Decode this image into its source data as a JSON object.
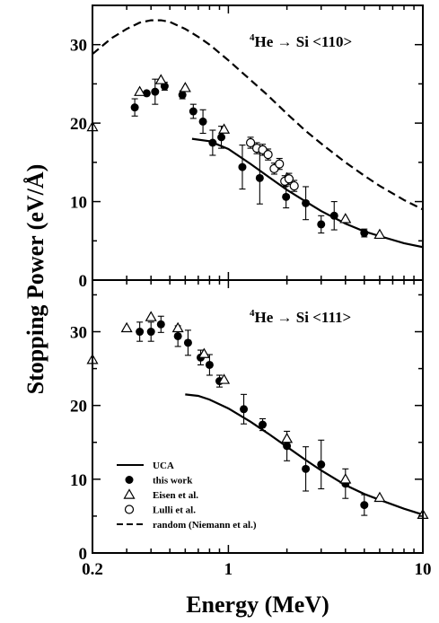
{
  "chart_data": {
    "type": "scatter",
    "xlabel": "Energy (MeV)",
    "ylabel": "Stopping Power (eV/Å)",
    "xscale": "log",
    "xlim": [
      0.2,
      10
    ],
    "xticks": [
      0.2,
      1,
      10
    ],
    "xticklabels": [
      "0.2",
      "1",
      "10"
    ],
    "legend_position": "bottom-left of lower panel",
    "legend": [
      {
        "label": "UCA",
        "marker": "solid-line"
      },
      {
        "label": "this work",
        "marker": "filled-circle"
      },
      {
        "label": "Eisen et al.",
        "marker": "open-triangle"
      },
      {
        "label": "Lulli et al.",
        "marker": "open-circle"
      },
      {
        "label": "random (Niemann et al.)",
        "marker": "dashed-line"
      }
    ],
    "panels": [
      {
        "title_prefix": "4",
        "title_main": "He  →  Si <110>",
        "ylim": [
          0,
          35
        ],
        "yticks": [
          0,
          10,
          20,
          30
        ],
        "yticklabels": [
          "0",
          "10",
          "20",
          "30"
        ],
        "series": [
          {
            "name": "this work",
            "marker": "filled-circle",
            "x": [
              0.33,
              0.38,
              0.42,
              0.47,
              0.58,
              0.66,
              0.74,
              0.83,
              0.92,
              1.18,
              1.45,
              1.98,
              2.5,
              3.0,
              3.5,
              5.0
            ],
            "y": [
              22,
              23.8,
              24,
              24.7,
              23.6,
              21.5,
              20.2,
              17.5,
              18.2,
              14.4,
              13.0,
              10.6,
              9.8,
              7.1,
              8.2,
              6.0
            ],
            "err": [
              1.1,
              0,
              1.6,
              0.5,
              0.5,
              0.9,
              1.5,
              1.6,
              1.4,
              2.8,
              3.3,
              1.4,
              2.1,
              1.1,
              1.8,
              0.5
            ]
          },
          {
            "name": "Eisen et al.",
            "marker": "open-triangle",
            "x": [
              0.2,
              0.35,
              0.45,
              0.6,
              0.95,
              2.0,
              4.0,
              6.0
            ],
            "y": [
              19.5,
              24.0,
              25.5,
              24.5,
              19.2,
              13.0,
              7.8,
              5.8
            ],
            "err": [
              0,
              0,
              0,
              0,
              0,
              0,
              0,
              0
            ]
          },
          {
            "name": "Lulli et al.",
            "marker": "open-circle",
            "x": [
              1.3,
              1.4,
              1.5,
              1.6,
              1.72,
              1.83,
              1.95,
              2.05,
              2.18
            ],
            "y": [
              17.5,
              16.8,
              16.6,
              16.0,
              14.2,
              14.8,
              12.6,
              12.9,
              12.0
            ],
            "err": [
              0.7,
              0.7,
              0.7,
              0.7,
              0.7,
              0.7,
              0.7,
              0.7,
              0.7
            ]
          },
          {
            "name": "UCA",
            "style": "solid-line",
            "x": [
              0.65,
              0.8,
              1.0,
              1.3,
              1.6,
              2.0,
              2.5,
              3.0,
              4.0,
              5.0,
              6.0,
              8.0,
              10.0
            ],
            "y": [
              18.0,
              17.7,
              16.7,
              14.8,
              13.2,
              11.5,
              10.0,
              8.8,
              7.2,
              6.2,
              5.6,
              4.7,
              4.2
            ]
          },
          {
            "name": "random (Niemann et al.)",
            "style": "dashed-line",
            "x": [
              0.2,
              0.25,
              0.3,
              0.35,
              0.4,
              0.45,
              0.5,
              0.6,
              0.7,
              0.8,
              1.0,
              1.3,
              1.6,
              2.0,
              2.5,
              3.0,
              4.0,
              5.0,
              6.0,
              8.0,
              10.0
            ],
            "y": [
              28.8,
              30.8,
              32.0,
              32.8,
              33.1,
              33.1,
              32.9,
              32.0,
              31.0,
              30.0,
              28.0,
              25.5,
              23.5,
              21.2,
              19.0,
              17.4,
              15.0,
              13.3,
              12.0,
              10.2,
              9.0
            ]
          }
        ]
      },
      {
        "title_prefix": "4",
        "title_main": "He  →  Si <111>",
        "ylim": [
          0,
          37
        ],
        "yticks": [
          0,
          10,
          20,
          30
        ],
        "yticklabels": [
          "0",
          "10",
          "20",
          "30"
        ],
        "series": [
          {
            "name": "this work",
            "marker": "filled-circle",
            "x": [
              0.35,
              0.4,
              0.45,
              0.55,
              0.62,
              0.72,
              0.8,
              0.9,
              1.2,
              1.5,
              2.0,
              2.5,
              3.0,
              4.0,
              5.0
            ],
            "y": [
              30.0,
              30.0,
              31.0,
              29.4,
              28.5,
              26.5,
              25.5,
              23.3,
              19.5,
              17.4,
              14.5,
              11.4,
              12.0,
              9.4,
              6.5
            ],
            "err": [
              1.3,
              1.3,
              1.1,
              1.4,
              1.7,
              1.0,
              1.4,
              0.8,
              2.0,
              0.8,
              2.0,
              3.0,
              3.3,
              2.0,
              1.4
            ]
          },
          {
            "name": "Eisen et al.",
            "marker": "open-triangle",
            "x": [
              0.2,
              0.3,
              0.4,
              0.55,
              0.75,
              0.95,
              2.0,
              4.0,
              6.0,
              10.0
            ],
            "y": [
              26.2,
              30.5,
              32.0,
              30.5,
              27.0,
              23.5,
              15.5,
              10.0,
              7.5,
              5.2
            ],
            "err": [
              0,
              0,
              0,
              0,
              0,
              0,
              0,
              0,
              0,
              0
            ]
          },
          {
            "name": "UCA",
            "style": "solid-line",
            "x": [
              0.6,
              0.7,
              0.8,
              1.0,
              1.3,
              1.6,
              2.0,
              2.5,
              3.0,
              4.0,
              5.0,
              6.0,
              8.0,
              10.0
            ],
            "y": [
              21.5,
              21.3,
              20.8,
              19.6,
              17.8,
              16.2,
              14.4,
              12.6,
              11.2,
              9.2,
              8.0,
              7.2,
              6.0,
              5.2
            ]
          }
        ]
      }
    ]
  }
}
